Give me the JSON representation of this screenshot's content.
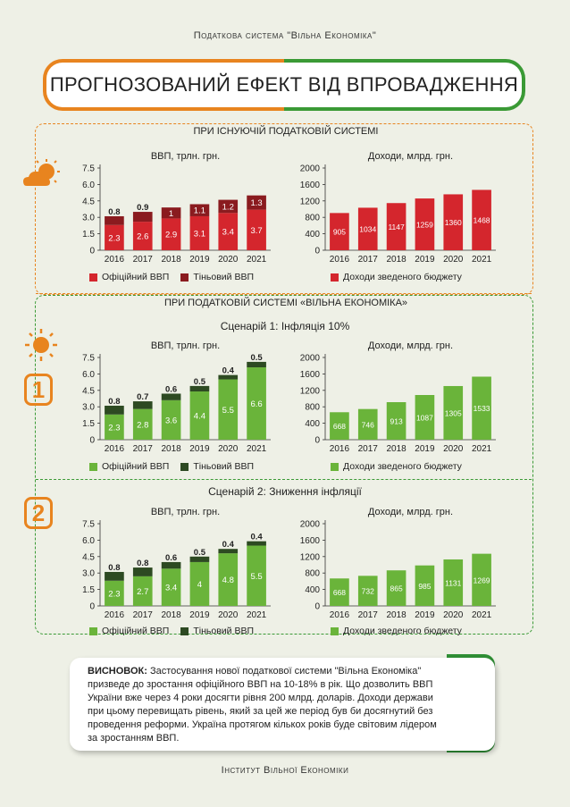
{
  "header_text": "Податкова система \"Вільна Економіка\"",
  "banner_title": "ПРОГНОЗОВАНИЙ ЕФЕКТ ВІД ВПРОВАДЖЕННЯ",
  "section1_label": "ПРИ ІСНУЮЧІЙ ПОДАТКОВІЙ СИСТЕМІ",
  "section2_label": "ПРИ ПОДАТКОВІЙ СИСТЕМІ «ВІЛЬНА ЕКОНОМІКА»",
  "scenario1_label": "Сценарій 1: Інфляція 10%",
  "scenario2_label": "Сценарій 2: Зниження інфляції",
  "badge1": "1",
  "badge2": "2",
  "legend": {
    "official_gdp": "Офіційний ВВП",
    "shadow_gdp": "Тіньовий ВВП",
    "budget_income": "Доходи зведеного бюджету"
  },
  "colors": {
    "red_official": "#d4262d",
    "red_shadow": "#8a1b1f",
    "green_official": "#6ab43a",
    "green_shadow": "#2d4a22",
    "orange": "#e8841f",
    "green_accent": "#3a9a35"
  },
  "conclusion": {
    "heading": "ВИСНОВОК:",
    "text": "Застосування нової податкової системи \"Вільна Економіка\" призведе до зростання офіційного ВВП на 10-18% в рік. Що дозволить ВВП України вже через 4 роки досягти рівня 200 млрд. доларів. Доходи держави при цьому перевищать рівень, який за цей же період був би досягнутий без проведення реформи. Україна протягом кількох років буде світовим лідером за зростанням ВВП."
  },
  "footer_text": "Інститут Вільної Економіки",
  "chart_data": [
    {
      "type": "bar",
      "title": "ВВП, трлн. грн.",
      "categories": [
        "2016",
        "2017",
        "2018",
        "2019",
        "2020",
        "2021"
      ],
      "series": [
        {
          "name": "Офіційний ВВП",
          "values": [
            2.3,
            2.6,
            2.9,
            3.1,
            3.4,
            3.7
          ]
        },
        {
          "name": "Тіньовий ВВП",
          "values": [
            0.8,
            0.9,
            1.0,
            1.1,
            1.2,
            1.3
          ]
        }
      ],
      "yticks": [
        "0",
        "1.5",
        "3.0",
        "4.5",
        "6.0",
        "7.5"
      ],
      "ylim": [
        0,
        7.5
      ]
    },
    {
      "type": "bar",
      "title": "Доходи, млрд. грн.",
      "categories": [
        "2016",
        "2017",
        "2018",
        "2019",
        "2020",
        "2021"
      ],
      "series": [
        {
          "name": "Доходи зведеного бюджету",
          "values": [
            905,
            1034,
            1147,
            1259,
            1360,
            1468
          ]
        }
      ],
      "yticks": [
        "0",
        "400",
        "800",
        "1200",
        "1600",
        "2000"
      ],
      "ylim": [
        0,
        2000
      ]
    },
    {
      "type": "bar",
      "title": "ВВП, трлн. грн.",
      "categories": [
        "2016",
        "2017",
        "2018",
        "2019",
        "2020",
        "2021"
      ],
      "series": [
        {
          "name": "Офіційний ВВП",
          "values": [
            2.3,
            2.8,
            3.6,
            4.4,
            5.5,
            6.6
          ]
        },
        {
          "name": "Тіньовий ВВП",
          "values": [
            0.8,
            0.7,
            0.6,
            0.5,
            0.4,
            0.5
          ]
        }
      ],
      "yticks": [
        "0",
        "1.5",
        "3.0",
        "4.5",
        "6.0",
        "7.5"
      ],
      "ylim": [
        0,
        7.5
      ]
    },
    {
      "type": "bar",
      "title": "Доходи, млрд. грн.",
      "categories": [
        "2016",
        "2017",
        "2018",
        "2019",
        "2020",
        "2021"
      ],
      "series": [
        {
          "name": "Доходи зведеного бюджету",
          "values": [
            668,
            746,
            913,
            1087,
            1305,
            1533
          ]
        }
      ],
      "yticks": [
        "0",
        "400",
        "800",
        "1200",
        "1600",
        "2000"
      ],
      "ylim": [
        0,
        2000
      ]
    },
    {
      "type": "bar",
      "title": "ВВП, трлн. грн.",
      "categories": [
        "2016",
        "2017",
        "2018",
        "2019",
        "2020",
        "2021"
      ],
      "series": [
        {
          "name": "Офіційний ВВП",
          "values": [
            2.3,
            2.7,
            3.4,
            4.0,
            4.8,
            5.5
          ]
        },
        {
          "name": "Тіньовий ВВП",
          "values": [
            0.8,
            0.8,
            0.6,
            0.5,
            0.4,
            0.4
          ]
        }
      ],
      "yticks": [
        "0",
        "1.5",
        "3.0",
        "4.5",
        "6.0",
        "7.5"
      ],
      "ylim": [
        0,
        7.5
      ]
    },
    {
      "type": "bar",
      "title": "Доходи, млрд. грн.",
      "categories": [
        "2016",
        "2017",
        "2018",
        "2019",
        "2020",
        "2021"
      ],
      "series": [
        {
          "name": "Доходи зведеного бюджету",
          "values": [
            668,
            732,
            865,
            985,
            1131,
            1269
          ]
        }
      ],
      "yticks": [
        "0",
        "400",
        "800",
        "1200",
        "1600",
        "2000"
      ],
      "ylim": [
        0,
        2000
      ]
    }
  ]
}
